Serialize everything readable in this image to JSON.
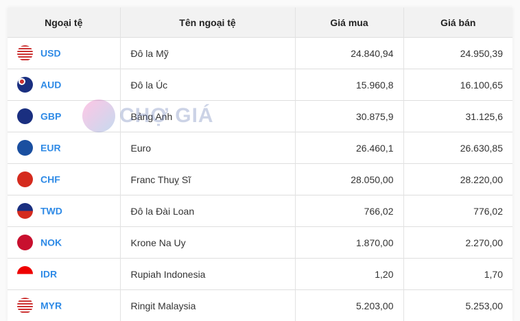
{
  "table": {
    "headers": [
      "Ngoại tệ",
      "Tên ngoại tệ",
      "Giá mua",
      "Giá bán"
    ],
    "rows": [
      {
        "code": "USD",
        "name": "Đô la Mỹ",
        "buy": "24.840,94",
        "sell": "24.950,39",
        "flag": "us-flag-icon"
      },
      {
        "code": "AUD",
        "name": "Đô la Úc",
        "buy": "15.960,8",
        "sell": "16.100,65",
        "flag": "au-flag-icon"
      },
      {
        "code": "GBP",
        "name": "Bảng Anh",
        "buy": "30.875,9",
        "sell": "31.125,6",
        "flag": "gb-flag-icon"
      },
      {
        "code": "EUR",
        "name": "Euro",
        "buy": "26.460,1",
        "sell": "26.630,85",
        "flag": "eu-flag-icon"
      },
      {
        "code": "CHF",
        "name": "Franc Thuỵ Sĩ",
        "buy": "28.050,00",
        "sell": "28.220,00",
        "flag": "ch-flag-icon"
      },
      {
        "code": "TWD",
        "name": "Đô la Đài Loan",
        "buy": "766,02",
        "sell": "776,02",
        "flag": "tw-flag-icon"
      },
      {
        "code": "NOK",
        "name": "Krone Na Uy",
        "buy": "1.870,00",
        "sell": "2.270,00",
        "flag": "no-flag-icon"
      },
      {
        "code": "IDR",
        "name": "Rupiah Indonesia",
        "buy": "1,20",
        "sell": "1,70",
        "flag": "id-flag-icon"
      },
      {
        "code": "MYR",
        "name": "Ringit Malaysia",
        "buy": "5.203,00",
        "sell": "5.253,00",
        "flag": "my-flag-icon"
      }
    ]
  },
  "watermark": {
    "text": "CHỢ GIÁ"
  },
  "colors": {
    "code": "#2e8ae6",
    "header_bg": "#f2f2f2"
  }
}
